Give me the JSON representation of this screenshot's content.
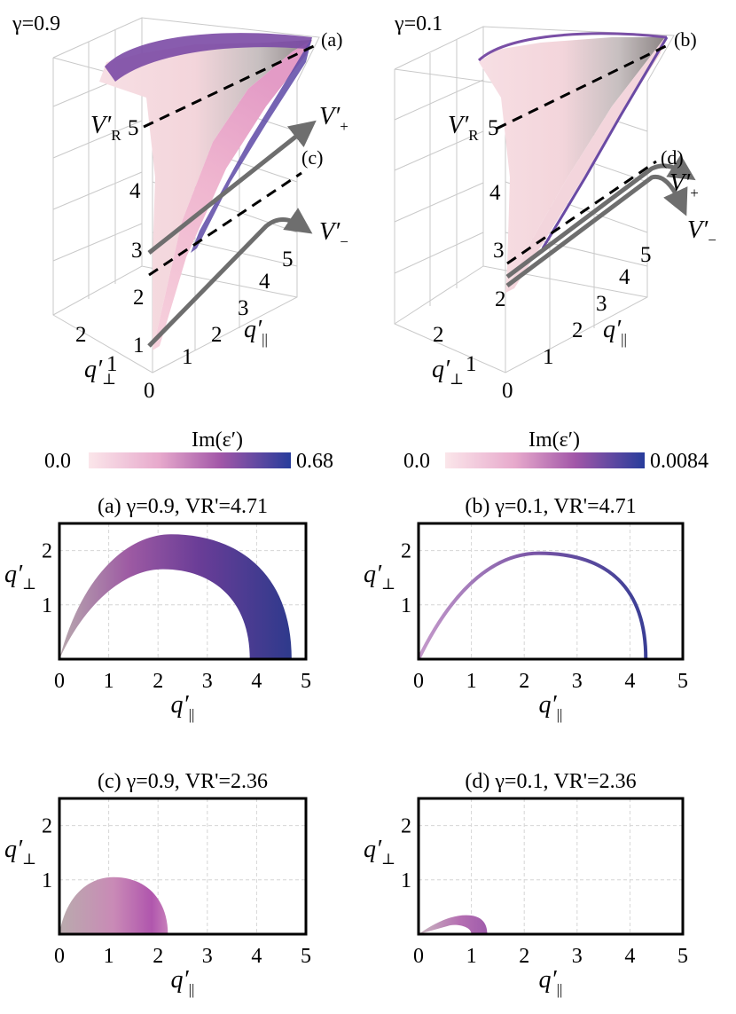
{
  "top_left": {
    "gamma": "γ=0.9",
    "tag_a": "(a)",
    "tag_c": "(c)",
    "vr_label": "V",
    "vr_sub": "R",
    "vplus_label": "V",
    "vplus_sub": "+",
    "vminus_label": "V",
    "vminus_sub": "−",
    "z_ticks": [
      "1",
      "2",
      "3",
      "4",
      "5"
    ],
    "qpar_ticks": [
      "1",
      "2",
      "3",
      "4",
      "5"
    ],
    "qperp_ticks": [
      "0",
      "1",
      "2"
    ],
    "qpar_label": "q",
    "qperp_label": "q"
  },
  "top_right": {
    "gamma": "γ=0.1",
    "tag_b": "(b)",
    "tag_d": "(d)",
    "vr_label": "V",
    "vr_sub": "R",
    "vplus_label": "V",
    "vplus_sub": "+",
    "vminus_label": "V",
    "vminus_sub": "−",
    "z_ticks": [
      "2",
      "3",
      "4",
      "5"
    ],
    "qpar_ticks": [
      "1",
      "2",
      "3",
      "4",
      "5"
    ],
    "qperp_ticks": [
      "0",
      "1",
      "2"
    ],
    "qpar_label": "q",
    "qperp_label": "q"
  },
  "colorbars": [
    {
      "title": "Im(ε′)",
      "min": "0.0",
      "max": "0.68"
    },
    {
      "title": "Im(ε′)",
      "min": "0.0",
      "max": "0.0084"
    }
  ],
  "colors": {
    "low": "#f6d7de",
    "mid": "#a956a8",
    "high": "#2a3d9a",
    "surface_gray": "#9e9696",
    "arrow_gray": "#6e6e6e"
  },
  "chart_data": [
    {
      "type": "heatmap",
      "title": "(a) γ=0.9, VR'=4.71",
      "xlabel": "q",
      "ylabel": "q",
      "xlim": [
        0,
        5
      ],
      "ylim": [
        0,
        2.5
      ],
      "x_ticks": [
        "0",
        "1",
        "2",
        "3",
        "4",
        "5"
      ],
      "y_ticks": [
        "1",
        "2"
      ],
      "region": {
        "q_par_max": 4.71,
        "q_perp_max": 2.3
      }
    },
    {
      "type": "heatmap",
      "title": "(b) γ=0.1, VR'=4.71",
      "xlabel": "q",
      "ylabel": "q",
      "xlim": [
        0,
        5
      ],
      "ylim": [
        0,
        2.5
      ],
      "x_ticks": [
        "0",
        "1",
        "2",
        "3",
        "4",
        "5"
      ],
      "y_ticks": [
        "1",
        "2"
      ],
      "region": {
        "q_par_max": 4.3,
        "q_perp_max": 1.95
      }
    },
    {
      "type": "heatmap",
      "title": "(c) γ=0.9, VR'=2.36",
      "xlabel": "q",
      "ylabel": "q",
      "xlim": [
        0,
        5
      ],
      "ylim": [
        0,
        2.5
      ],
      "x_ticks": [
        "0",
        "1",
        "2",
        "3",
        "4",
        "5"
      ],
      "y_ticks": [
        "1",
        "2"
      ],
      "region": {
        "q_par_max": 2.2,
        "q_perp_max": 1.05
      }
    },
    {
      "type": "heatmap",
      "title": "(d) γ=0.1, VR'=2.36",
      "xlabel": "q",
      "ylabel": "q",
      "xlim": [
        0,
        5
      ],
      "ylim": [
        0,
        2.5
      ],
      "x_ticks": [
        "0",
        "1",
        "2",
        "3",
        "4",
        "5"
      ],
      "y_ticks": [
        "1",
        "2"
      ],
      "region": {
        "q_par_max": 1.3,
        "q_perp_max": 0.35
      }
    }
  ]
}
